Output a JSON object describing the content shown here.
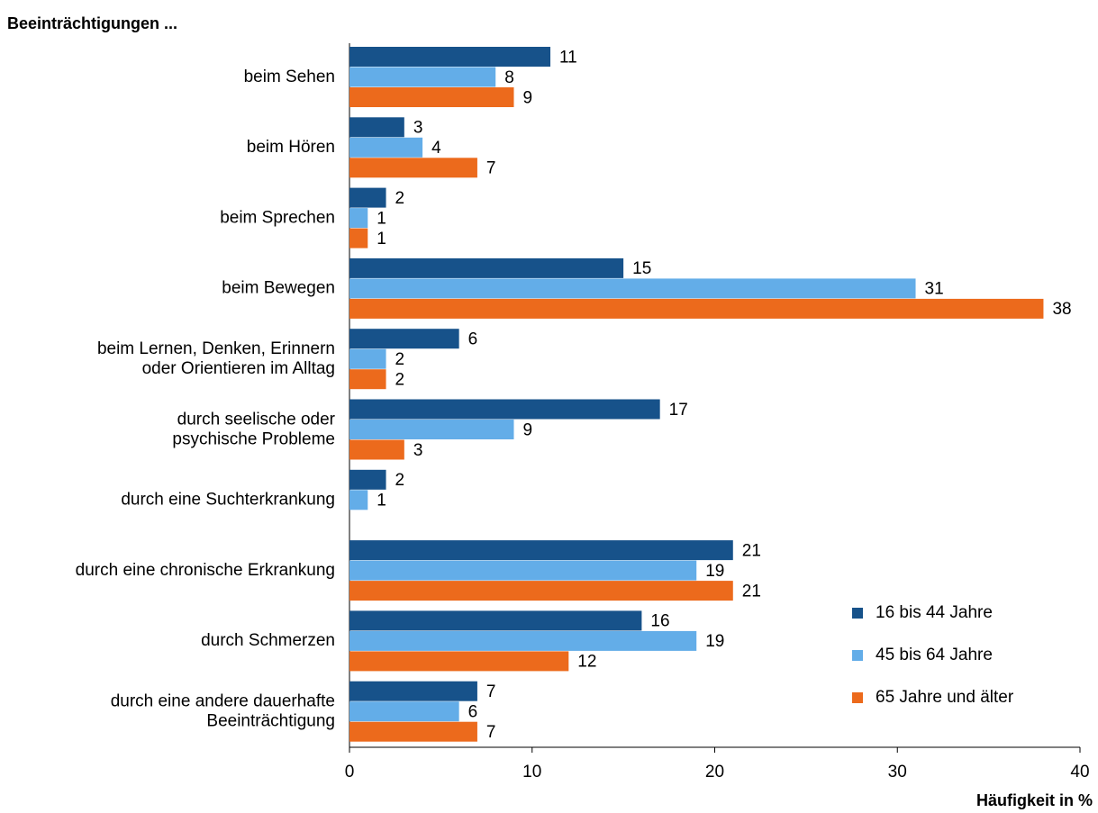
{
  "chart_data": {
    "type": "bar",
    "orientation": "horizontal",
    "title": "Beeinträchtigungen ...",
    "x_label": "Häufigkeit in %",
    "categories": [
      "beim Sehen",
      "beim Hören",
      "beim Sprechen",
      "beim Bewegen",
      "beim Lernen, Denken, Erinnern\noder Orientieren im Alltag",
      "durch seelische oder\npsychische Probleme",
      "durch eine Suchterkrankung",
      "durch eine chronische Erkrankung",
      "durch Schmerzen",
      "durch eine andere dauerhafte\nBeeinträchtigung"
    ],
    "series": [
      {
        "name": "16 bis 44 Jahre",
        "color": "#17528a",
        "values": [
          11,
          3,
          2,
          15,
          6,
          17,
          2,
          21,
          16,
          7
        ]
      },
      {
        "name": "45 bis 64 Jahre",
        "color": "#63ade8",
        "values": [
          8,
          4,
          1,
          31,
          2,
          9,
          1,
          19,
          19,
          6
        ]
      },
      {
        "name": "65 Jahre und älter",
        "color": "#ec6a1c",
        "values": [
          9,
          7,
          1,
          38,
          2,
          3,
          null,
          21,
          12,
          7
        ]
      }
    ],
    "xlim": [
      0,
      40
    ],
    "xticks": [
      0,
      10,
      20,
      30,
      40
    ],
    "grid": false,
    "legend": "lower right"
  }
}
